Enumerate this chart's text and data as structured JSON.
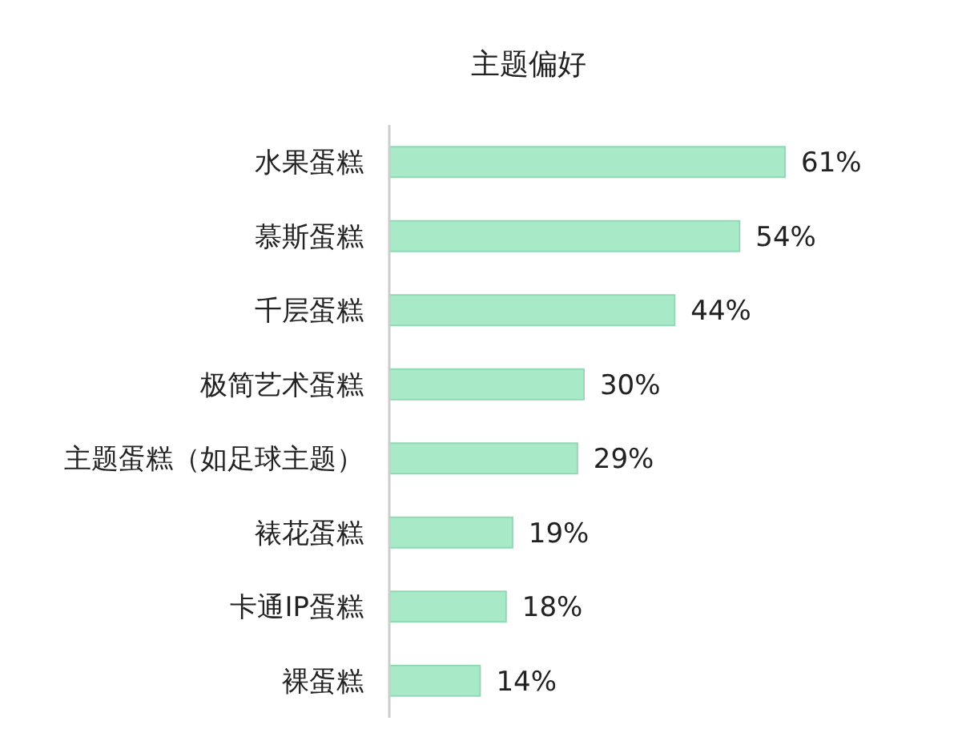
{
  "chart_data": {
    "type": "bar",
    "title": "主题偏好",
    "orientation": "horizontal",
    "categories": [
      "水果蛋糕",
      "慕斯蛋糕",
      "千层蛋糕",
      "极简艺术蛋糕",
      "主题蛋糕（如足球主题）",
      "裱花蛋糕",
      "卡通IP蛋糕",
      "裸蛋糕"
    ],
    "values": [
      61,
      54,
      44,
      30,
      29,
      19,
      18,
      14
    ],
    "value_labels": [
      "61%",
      "54%",
      "44%",
      "30%",
      "29%",
      "19%",
      "18%",
      "14%"
    ],
    "color": "#a8e9c8"
  }
}
